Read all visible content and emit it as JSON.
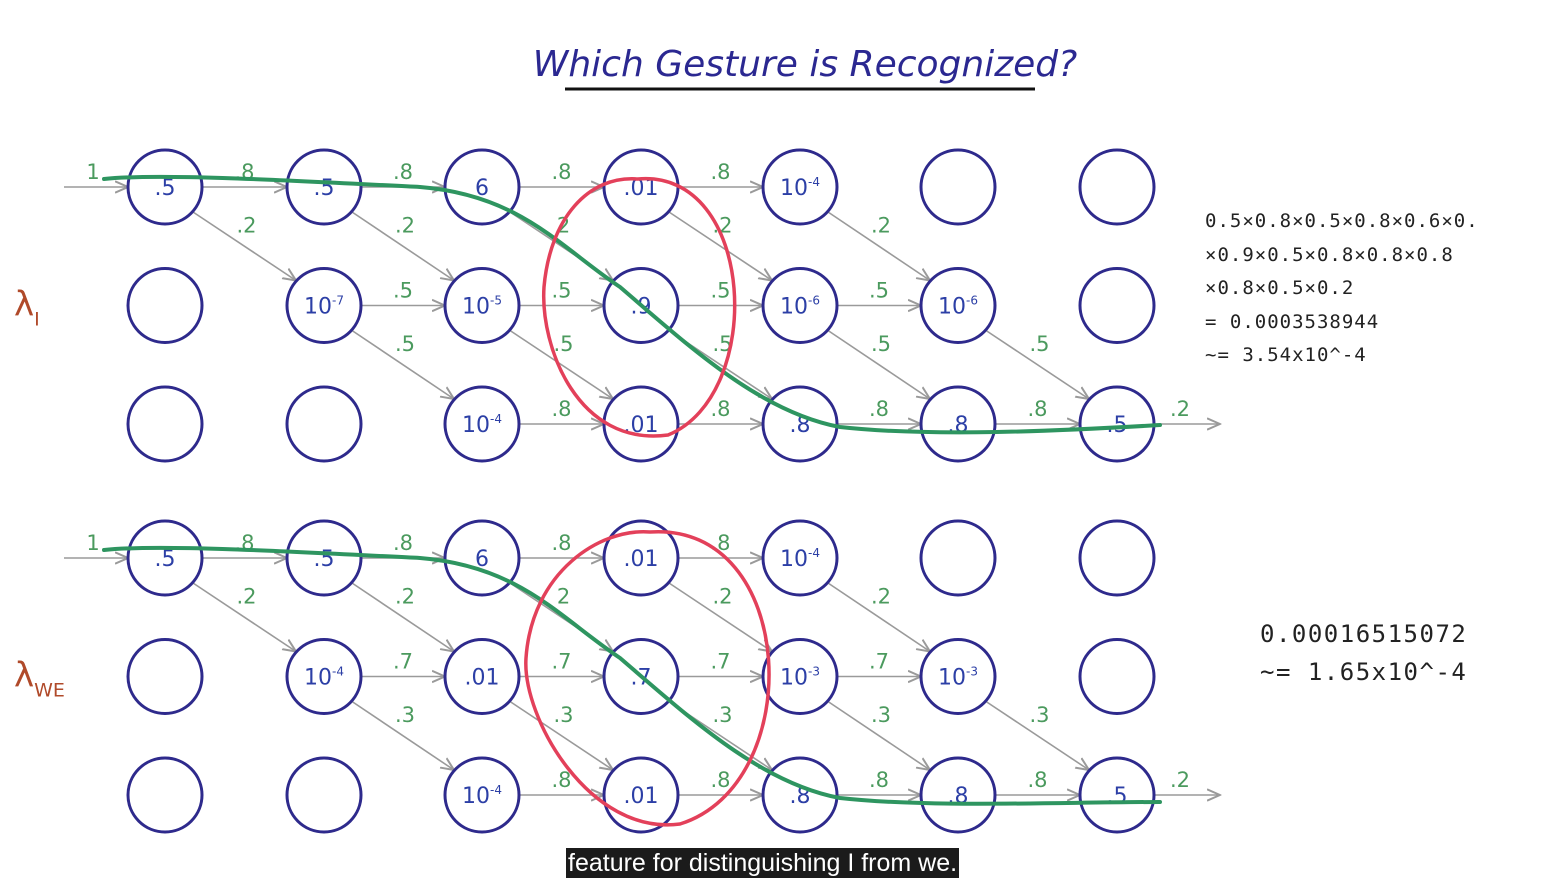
{
  "title": "Which Gesture is Recognized?",
  "colors": {
    "state_circle": "#2e2a8c",
    "state_text": "#2c3fa6",
    "transition_prob": "#4b9a5e",
    "arrow": "#9a9a9a",
    "path_stroke": "#2e9560",
    "highlight_stroke": "#e3405a",
    "model_label": "#b04a2a"
  },
  "models": [
    {
      "label": {
        "symbol": "λ",
        "sub": "I"
      },
      "entry_prob": "1",
      "emissions": [
        [
          ".5",
          ".5",
          "6",
          ".01",
          "10-4",
          "",
          ""
        ],
        [
          "",
          "10-7",
          "10-5",
          ".9",
          "10-6",
          "10-6",
          ""
        ],
        [
          "",
          "",
          "10-4",
          ".01",
          ".8",
          ".8",
          ".5"
        ]
      ],
      "self_probs": [
        [
          ".8",
          ".8",
          ".8",
          ".8"
        ],
        [
          ".5",
          ".5",
          ".5",
          ".5"
        ],
        [
          ".8",
          ".8",
          ".8",
          ".8"
        ]
      ],
      "down_probs": [
        [
          ".2",
          ".2",
          "2",
          ".2",
          ".2"
        ],
        [
          ".5",
          ".5",
          ".5",
          ".5",
          ".5"
        ]
      ],
      "exit_prob": ".2",
      "result_lines": [
        "0.5×0.8×0.5×0.8×0.6×0.",
        "×0.9×0.5×0.8×0.8×0.8",
        "×0.8×0.5×0.2",
        "= 0.0003538944",
        "~= 3.54x10^-4"
      ]
    },
    {
      "label": {
        "symbol": "λ",
        "sub": "WE"
      },
      "entry_prob": "1",
      "emissions": [
        [
          ".5",
          ".5",
          "6",
          ".01",
          "10-4",
          "",
          ""
        ],
        [
          "",
          "10-4",
          ".01",
          ".7",
          "10-3",
          "10-3",
          ""
        ],
        [
          "",
          "",
          "10-4",
          ".01",
          ".8",
          ".8",
          ".5"
        ]
      ],
      "self_probs": [
        [
          ".8",
          ".8",
          ".8",
          ".8"
        ],
        [
          ".7",
          ".7",
          ".7",
          ".7"
        ],
        [
          ".8",
          ".8",
          ".8",
          ".8"
        ]
      ],
      "down_probs": [
        [
          ".2",
          ".2",
          "2",
          ".2",
          ".2"
        ],
        [
          ".3",
          ".3",
          ".3",
          ".3",
          ".3"
        ]
      ],
      "exit_prob": ".2",
      "result_lines": [
        "0.00016515072",
        "~= 1.65x10^-4"
      ]
    }
  ],
  "caption": "feature for distinguishing I from we."
}
